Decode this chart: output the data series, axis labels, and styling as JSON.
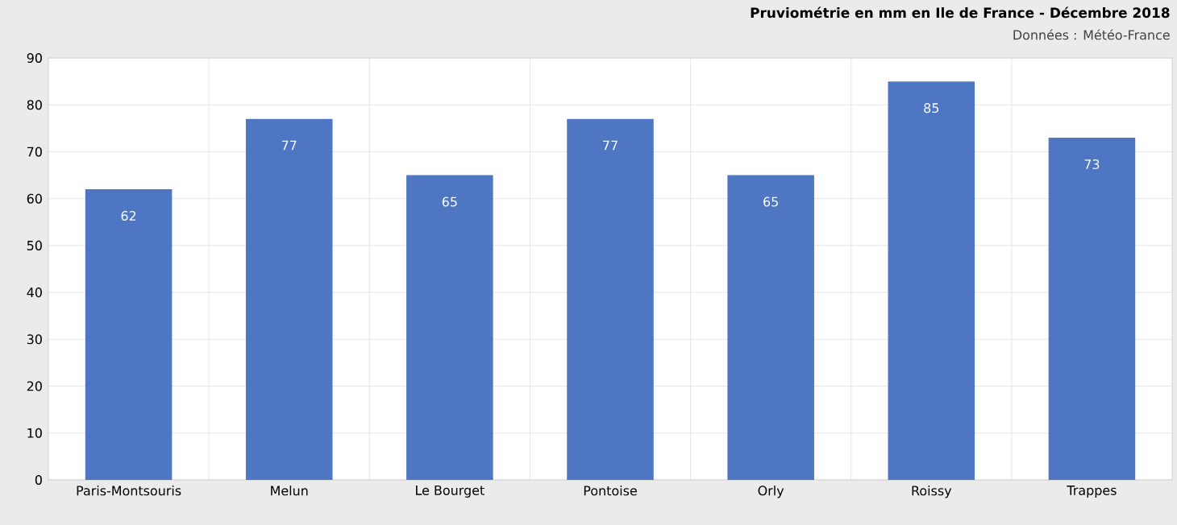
{
  "chart_data": {
    "type": "bar",
    "title": "Pruviométrie en mm en Ile de France - Décembre 2018",
    "annotations": [
      "Données : Météo-France"
    ],
    "categories": [
      "Paris-Montsouris",
      "Melun",
      "Le Bourget",
      "Pontoise",
      "Orly",
      "Roissy",
      "Trappes"
    ],
    "values": [
      62,
      77,
      65,
      77,
      65,
      85,
      73
    ],
    "color": "#4f76c2",
    "ylim": [
      0,
      90
    ],
    "yticks": [
      0,
      10,
      20,
      30,
      40,
      50,
      60,
      70,
      80,
      90
    ],
    "grid": true,
    "data_labels": true
  }
}
